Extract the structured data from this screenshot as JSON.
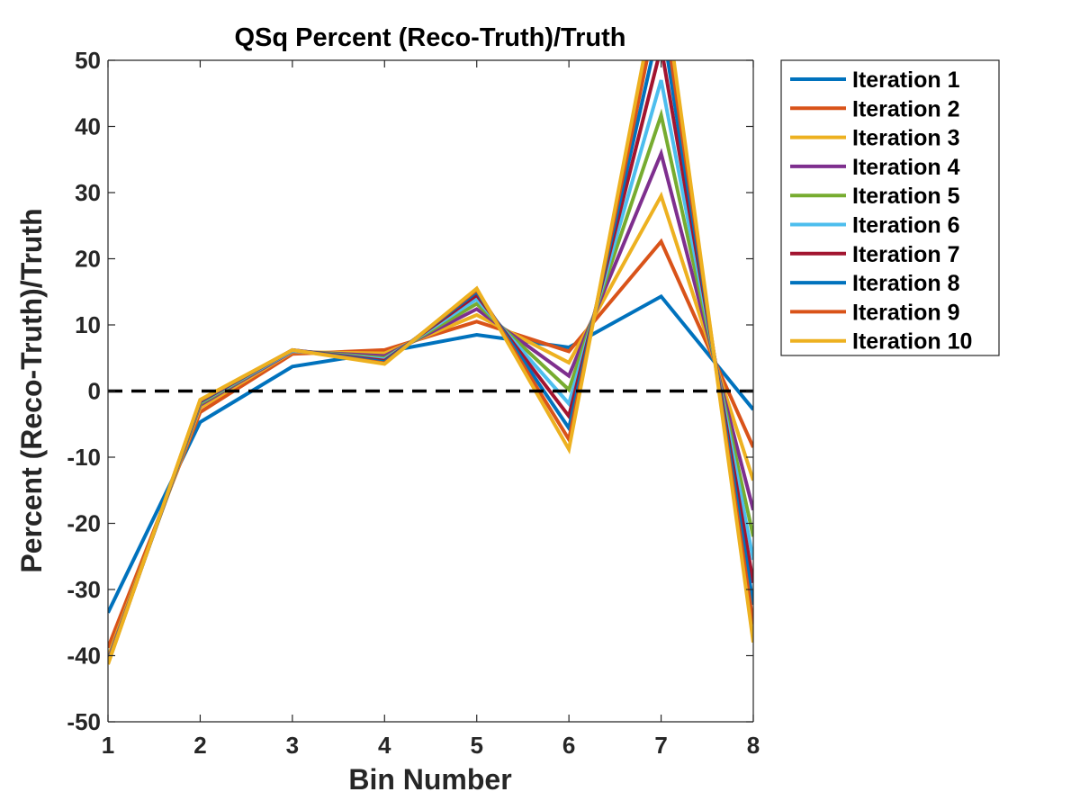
{
  "chart_data": {
    "type": "line",
    "title": "QSq Percent (Reco-Truth)/Truth",
    "xlabel": "Bin Number",
    "ylabel": "Percent (Reco-Truth)/Truth",
    "xlim": [
      1,
      8
    ],
    "ylim": [
      -50,
      50
    ],
    "x": [
      1,
      2,
      3,
      4,
      5,
      6,
      7,
      8
    ],
    "x_ticks": [
      "1",
      "2",
      "3",
      "4",
      "5",
      "6",
      "7",
      "8"
    ],
    "y_ticks": [
      "-50",
      "-40",
      "-30",
      "-20",
      "-10",
      "0",
      "10",
      "20",
      "30",
      "40",
      "50"
    ],
    "grid": false,
    "legend_position": "outside-top-right",
    "reference_line": {
      "y": 0,
      "style": "dashed",
      "color": "#000000"
    },
    "series": [
      {
        "name": "Iteration 1",
        "color": "#0072BD",
        "values": [
          -33.5,
          -4.7,
          3.7,
          5.9,
          8.5,
          6.6,
          14.3,
          -2.8
        ]
      },
      {
        "name": "Iteration 2",
        "color": "#D95319",
        "values": [
          -38.8,
          -3.2,
          5.6,
          6.2,
          10.5,
          6.0,
          22.6,
          -8.5
        ]
      },
      {
        "name": "Iteration 3",
        "color": "#EDB120",
        "values": [
          -40.2,
          -2.5,
          5.9,
          5.7,
          11.5,
          4.3,
          29.5,
          -13.5
        ]
      },
      {
        "name": "Iteration 4",
        "color": "#7E2F8E",
        "values": [
          -40.7,
          -2.1,
          6.0,
          5.3,
          12.4,
          2.3,
          35.9,
          -18.0
        ]
      },
      {
        "name": "Iteration 5",
        "color": "#77AC30",
        "values": [
          -40.9,
          -1.9,
          6.1,
          5.0,
          13.2,
          0.2,
          41.7,
          -22.0
        ]
      },
      {
        "name": "Iteration 6",
        "color": "#4DBEEE",
        "values": [
          -41.0,
          -1.7,
          6.1,
          4.8,
          13.9,
          -1.9,
          47.0,
          -25.5
        ]
      },
      {
        "name": "Iteration 7",
        "color": "#A2142F",
        "values": [
          -41.1,
          -1.6,
          6.2,
          4.6,
          14.5,
          -3.8,
          52.0,
          -29.0
        ]
      },
      {
        "name": "Iteration 8",
        "color": "#0072BD",
        "values": [
          -41.2,
          -1.5,
          6.2,
          4.4,
          15.0,
          -5.6,
          56.5,
          -32.3
        ]
      },
      {
        "name": "Iteration 9",
        "color": "#D95319",
        "values": [
          -41.2,
          -1.4,
          6.2,
          4.2,
          15.3,
          -7.3,
          60.5,
          -35.3
        ]
      },
      {
        "name": "Iteration 10",
        "color": "#EDB120",
        "values": [
          -41.3,
          -1.3,
          6.2,
          4.1,
          15.5,
          -8.8,
          64.0,
          -38.0
        ]
      }
    ]
  }
}
